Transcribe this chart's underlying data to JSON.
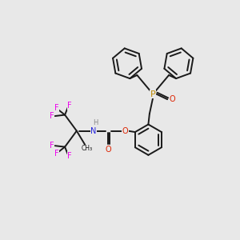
{
  "background_color": "#e8e8e8",
  "bond_color": "#1a1a1a",
  "atom_colors": {
    "F": "#ee00ee",
    "N": "#2222dd",
    "H": "#888888",
    "O": "#dd2200",
    "P": "#bb8800",
    "C": "#1a1a1a"
  },
  "figsize": [
    3.0,
    3.0
  ],
  "dpi": 100
}
